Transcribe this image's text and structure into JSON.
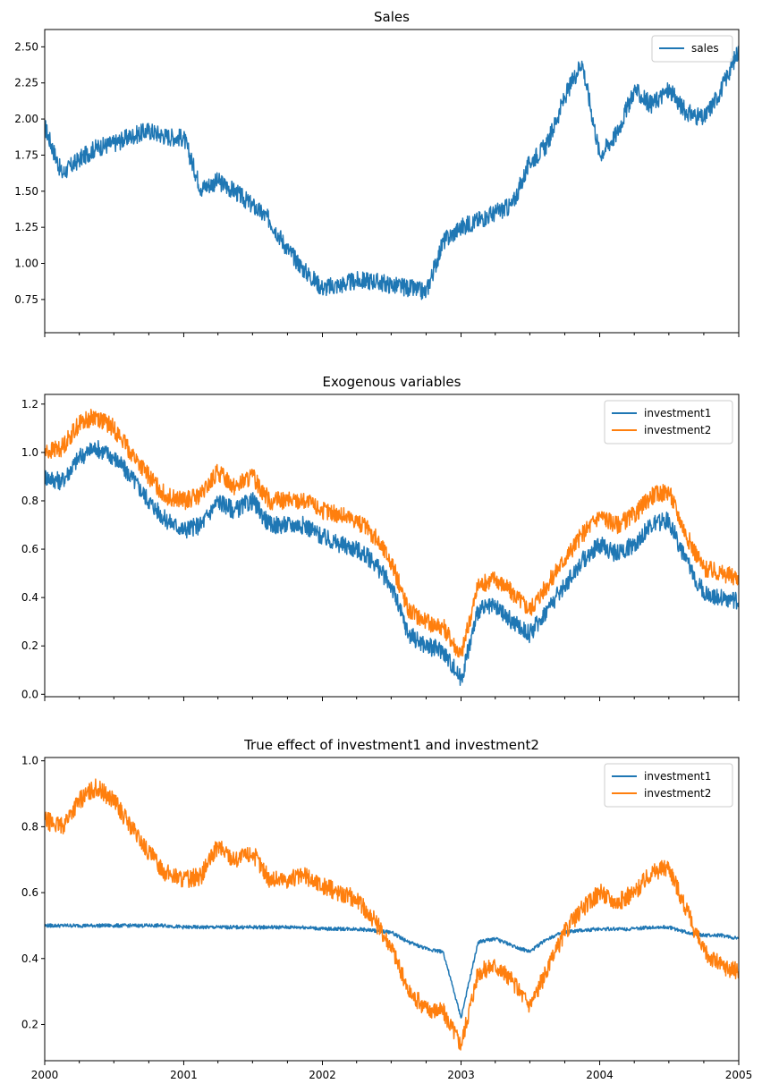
{
  "colors": {
    "blue": "#1f77b4",
    "orange": "#ff7f0e"
  },
  "chart_data": [
    {
      "type": "line",
      "title": "Sales",
      "xlabel": "",
      "ylabel": "",
      "xlim": [
        "2000-01-01",
        "2005-01-01"
      ],
      "x_ticks": [
        "2000",
        "2001",
        "2002",
        "2003",
        "2004",
        "2005"
      ],
      "x_ticklabels_visible": false,
      "ylim": [
        0.52,
        2.62
      ],
      "y_ticks": [
        "0.75",
        "1.00",
        "1.25",
        "1.50",
        "1.75",
        "2.00",
        "2.25",
        "2.50"
      ],
      "legend": "top-right",
      "grid": false,
      "x": [
        "2000-01-01",
        "2000-02-15",
        "2000-04-01",
        "2000-05-15",
        "2000-07-01",
        "2000-08-15",
        "2000-10-01",
        "2000-11-15",
        "2001-01-01",
        "2001-02-15",
        "2001-04-01",
        "2001-05-15",
        "2001-07-01",
        "2001-08-15",
        "2001-10-01",
        "2001-11-15",
        "2002-01-01",
        "2002-02-15",
        "2002-04-01",
        "2002-05-15",
        "2002-07-01",
        "2002-08-15",
        "2002-10-01",
        "2002-11-15",
        "2003-01-01",
        "2003-02-15",
        "2003-04-01",
        "2003-05-15",
        "2003-07-01",
        "2003-08-15",
        "2003-10-01",
        "2003-11-15",
        "2004-01-01",
        "2004-02-15",
        "2004-04-01",
        "2004-05-15",
        "2004-07-01",
        "2004-08-15",
        "2004-10-01",
        "2004-11-15",
        "2005-01-01"
      ],
      "series": [
        {
          "name": "sales",
          "color": "blue",
          "values": [
            1.95,
            1.62,
            1.72,
            1.8,
            1.83,
            1.88,
            1.92,
            1.88,
            1.87,
            1.52,
            1.57,
            1.5,
            1.4,
            1.3,
            1.1,
            0.95,
            0.83,
            0.85,
            0.88,
            0.88,
            0.85,
            0.83,
            0.8,
            1.15,
            1.25,
            1.3,
            1.35,
            1.4,
            1.7,
            1.82,
            2.15,
            2.4,
            1.75,
            1.9,
            2.2,
            2.1,
            2.2,
            2.05,
            2.0,
            2.2,
            2.48
          ]
        }
      ]
    },
    {
      "type": "line",
      "title": "Exogenous variables",
      "xlabel": "",
      "ylabel": "",
      "xlim": [
        "2000-01-01",
        "2005-01-01"
      ],
      "x_ticks": [
        "2000",
        "2001",
        "2002",
        "2003",
        "2004",
        "2005"
      ],
      "x_ticklabels_visible": false,
      "ylim": [
        -0.01,
        1.24
      ],
      "y_ticks": [
        "0.0",
        "0.2",
        "0.4",
        "0.6",
        "0.8",
        "1.0",
        "1.2"
      ],
      "legend": "top-right",
      "grid": false,
      "x": [
        "2000-01-01",
        "2000-02-15",
        "2000-04-01",
        "2000-05-15",
        "2000-07-01",
        "2000-08-15",
        "2000-10-01",
        "2000-11-15",
        "2001-01-01",
        "2001-02-15",
        "2001-04-01",
        "2001-05-15",
        "2001-07-01",
        "2001-08-15",
        "2001-10-01",
        "2001-11-15",
        "2002-01-01",
        "2002-02-15",
        "2002-04-01",
        "2002-05-15",
        "2002-07-01",
        "2002-08-15",
        "2002-10-01",
        "2002-11-15",
        "2003-01-01",
        "2003-02-15",
        "2003-04-01",
        "2003-05-15",
        "2003-07-01",
        "2003-08-15",
        "2003-10-01",
        "2003-11-15",
        "2004-01-01",
        "2004-02-15",
        "2004-04-01",
        "2004-05-15",
        "2004-07-01",
        "2004-08-15",
        "2004-10-01",
        "2004-11-15",
        "2005-01-01"
      ],
      "series": [
        {
          "name": "investment1",
          "color": "blue",
          "values": [
            0.9,
            0.88,
            0.98,
            1.02,
            0.98,
            0.9,
            0.8,
            0.72,
            0.68,
            0.7,
            0.8,
            0.76,
            0.8,
            0.7,
            0.7,
            0.7,
            0.65,
            0.62,
            0.6,
            0.55,
            0.45,
            0.25,
            0.2,
            0.18,
            0.06,
            0.35,
            0.36,
            0.3,
            0.25,
            0.35,
            0.45,
            0.55,
            0.62,
            0.58,
            0.62,
            0.7,
            0.72,
            0.55,
            0.42,
            0.4,
            0.38
          ]
        },
        {
          "name": "investment2",
          "color": "orange",
          "values": [
            1.0,
            1.02,
            1.12,
            1.15,
            1.1,
            1.0,
            0.9,
            0.82,
            0.8,
            0.82,
            0.92,
            0.86,
            0.9,
            0.8,
            0.8,
            0.8,
            0.76,
            0.74,
            0.72,
            0.66,
            0.55,
            0.35,
            0.3,
            0.28,
            0.16,
            0.45,
            0.48,
            0.42,
            0.35,
            0.45,
            0.56,
            0.66,
            0.74,
            0.7,
            0.74,
            0.82,
            0.84,
            0.66,
            0.52,
            0.5,
            0.48
          ]
        }
      ]
    },
    {
      "type": "line",
      "title": "True effect of investment1 and investment2",
      "xlabel": "",
      "ylabel": "",
      "xlim": [
        "2000-01-01",
        "2005-01-01"
      ],
      "x_ticks": [
        "2000",
        "2001",
        "2002",
        "2003",
        "2004",
        "2005"
      ],
      "x_ticklabels_visible": true,
      "ylim": [
        0.09,
        1.01
      ],
      "y_ticks": [
        "0.2",
        "0.4",
        "0.6",
        "0.8",
        "1.0"
      ],
      "legend": "top-right",
      "grid": false,
      "x": [
        "2000-01-01",
        "2000-02-15",
        "2000-04-01",
        "2000-05-15",
        "2000-07-01",
        "2000-08-15",
        "2000-10-01",
        "2000-11-15",
        "2001-01-01",
        "2001-02-15",
        "2001-04-01",
        "2001-05-15",
        "2001-07-01",
        "2001-08-15",
        "2001-10-01",
        "2001-11-15",
        "2002-01-01",
        "2002-02-15",
        "2002-04-01",
        "2002-05-15",
        "2002-07-01",
        "2002-08-15",
        "2002-10-01",
        "2002-11-15",
        "2003-01-01",
        "2003-02-15",
        "2003-04-01",
        "2003-05-15",
        "2003-07-01",
        "2003-08-15",
        "2003-10-01",
        "2003-11-15",
        "2004-01-01",
        "2004-02-15",
        "2004-04-01",
        "2004-05-15",
        "2004-07-01",
        "2004-08-15",
        "2004-10-01",
        "2004-11-15",
        "2005-01-01"
      ],
      "series": [
        {
          "name": "investment1",
          "color": "blue",
          "values": [
            0.5,
            0.5,
            0.5,
            0.5,
            0.5,
            0.5,
            0.5,
            0.5,
            0.495,
            0.495,
            0.495,
            0.495,
            0.495,
            0.495,
            0.495,
            0.495,
            0.49,
            0.49,
            0.49,
            0.485,
            0.48,
            0.45,
            0.43,
            0.42,
            0.22,
            0.45,
            0.46,
            0.44,
            0.42,
            0.46,
            0.48,
            0.485,
            0.49,
            0.49,
            0.49,
            0.495,
            0.495,
            0.48,
            0.47,
            0.47,
            0.46
          ]
        },
        {
          "name": "investment2",
          "color": "orange",
          "values": [
            0.82,
            0.8,
            0.88,
            0.92,
            0.88,
            0.8,
            0.72,
            0.66,
            0.64,
            0.65,
            0.74,
            0.7,
            0.72,
            0.64,
            0.64,
            0.65,
            0.62,
            0.6,
            0.58,
            0.52,
            0.44,
            0.3,
            0.25,
            0.24,
            0.14,
            0.36,
            0.38,
            0.33,
            0.26,
            0.36,
            0.48,
            0.55,
            0.6,
            0.57,
            0.6,
            0.66,
            0.68,
            0.55,
            0.42,
            0.38,
            0.36
          ]
        }
      ]
    }
  ]
}
